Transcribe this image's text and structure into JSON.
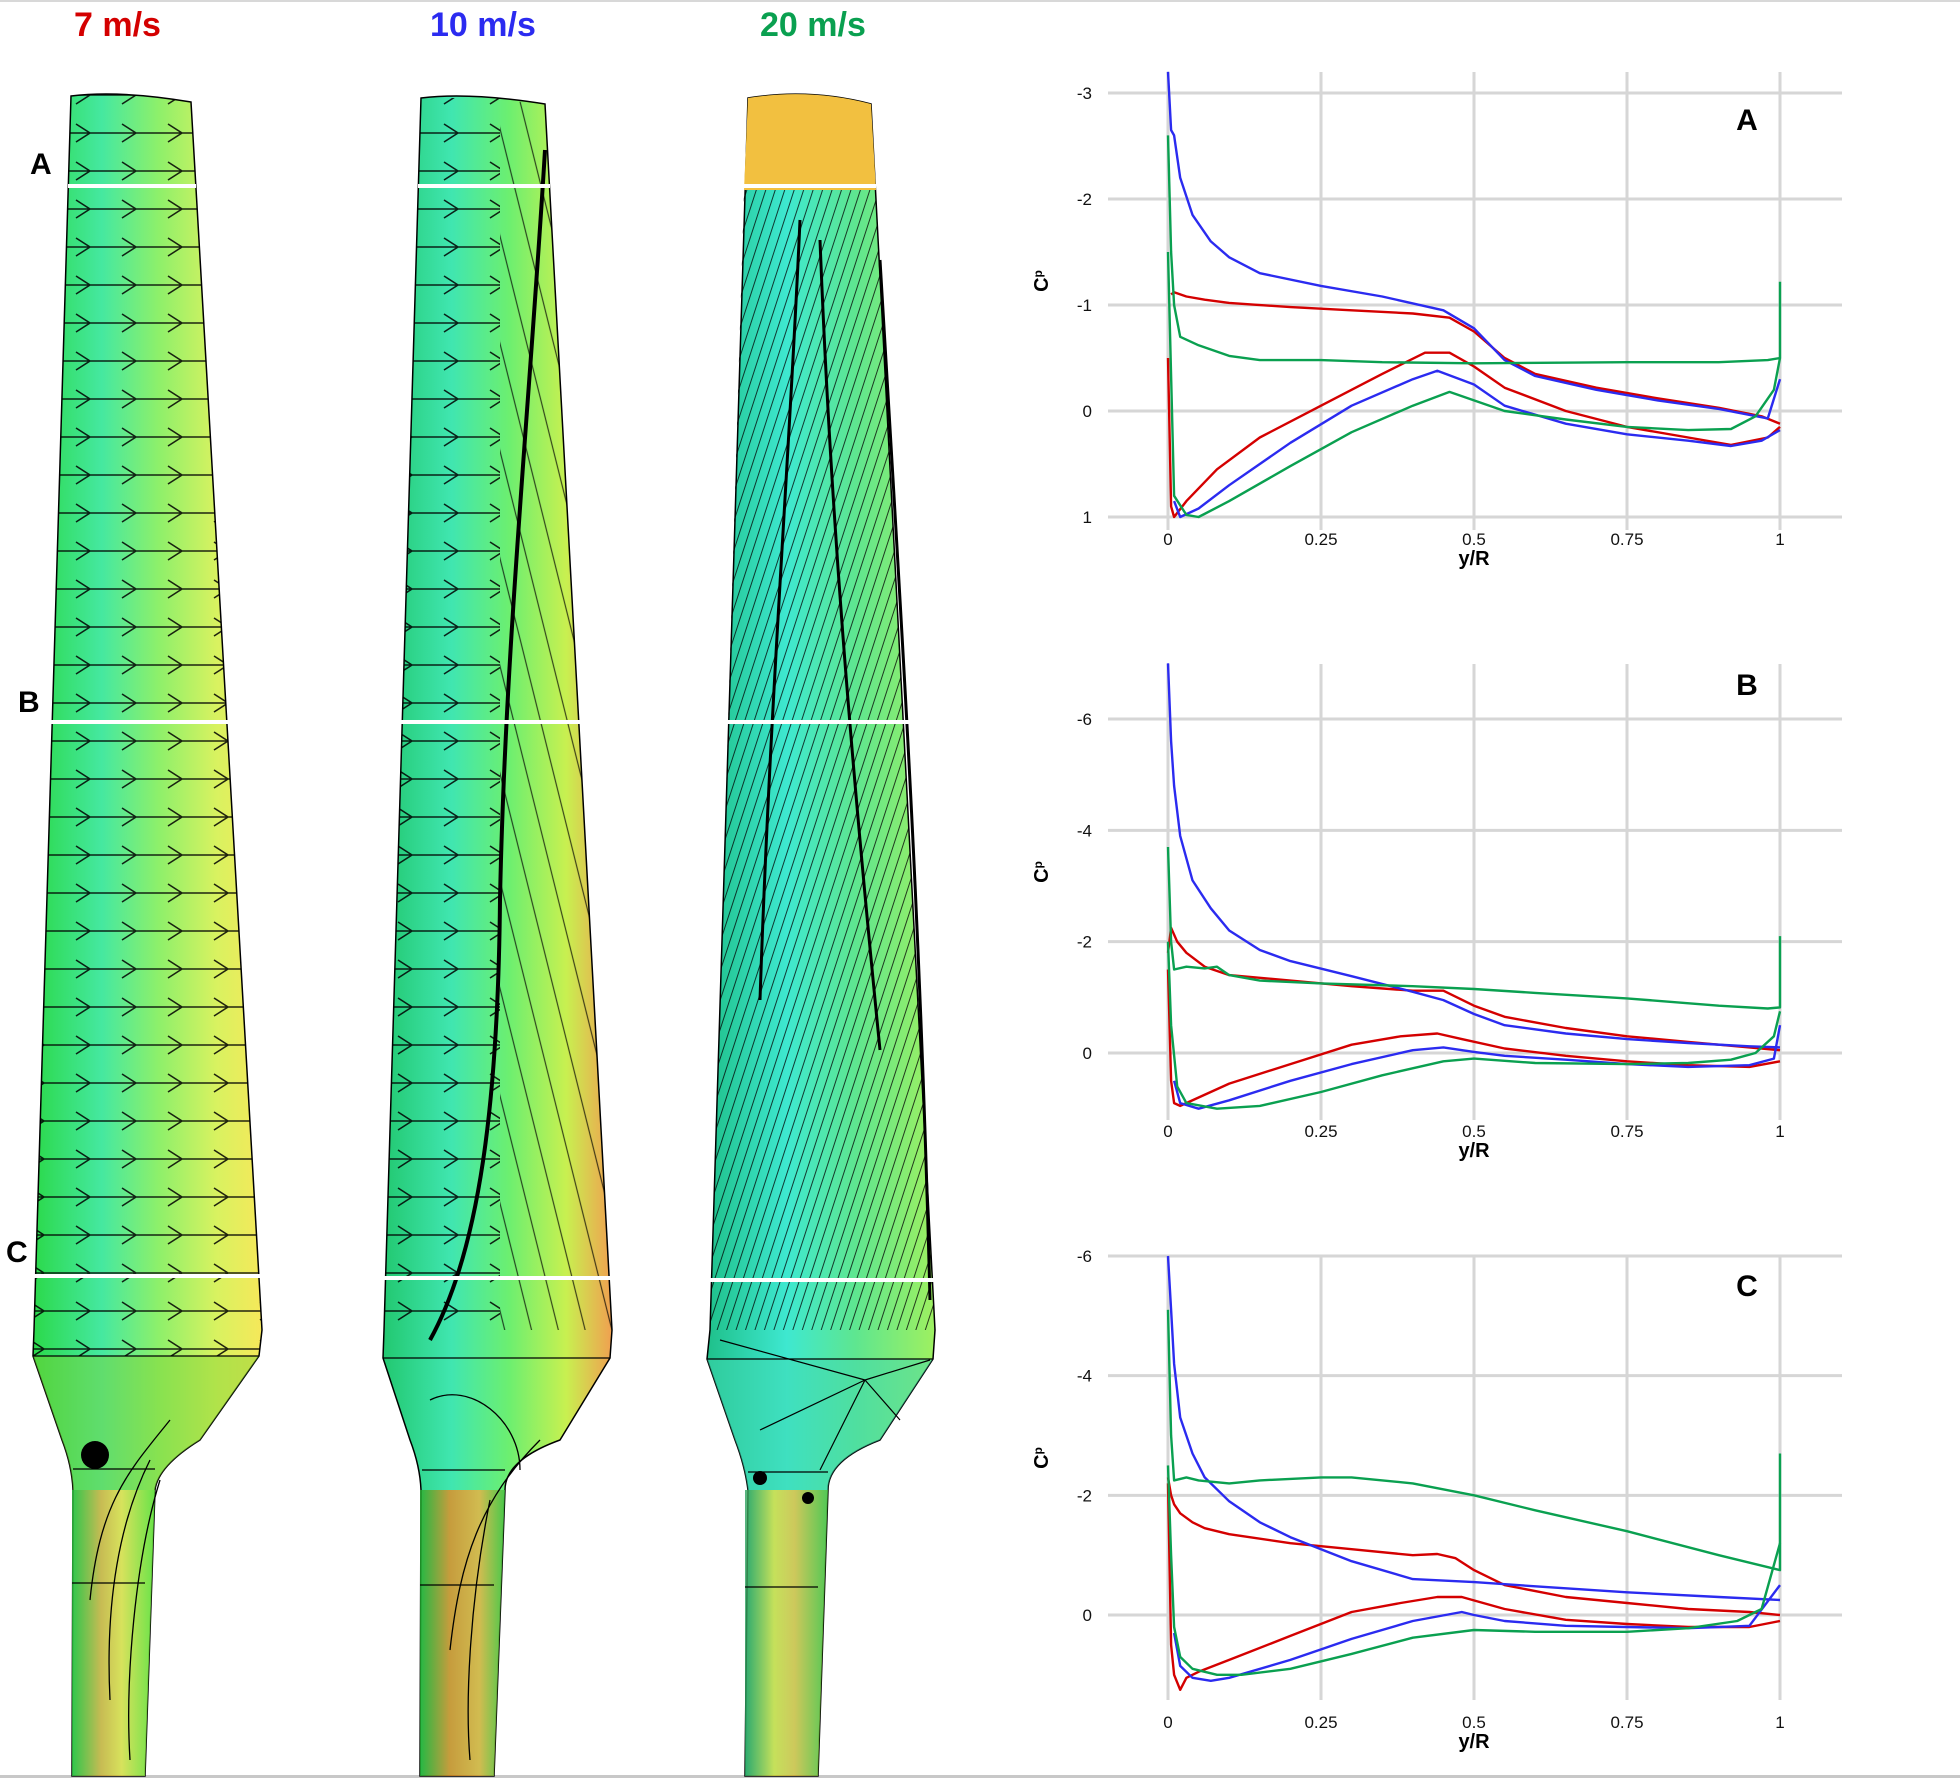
{
  "figure": {
    "speed_labels": [
      {
        "text": "7 m/s",
        "color": "#d40000"
      },
      {
        "text": "10 m/s",
        "color": "#2b2bf0"
      },
      {
        "text": "20 m/s",
        "color": "#0aa050"
      }
    ],
    "section_labels": [
      "A",
      "B",
      "C"
    ]
  },
  "chart_data": [
    {
      "type": "line",
      "title": "A",
      "xlabel": "y/R",
      "ylabel": "Cp",
      "xlim": [
        -0.1,
        1.1
      ],
      "ylim": [
        1,
        -3.2
      ],
      "y_inverted": true,
      "xticks": [
        "0",
        "0.25",
        "0.5",
        "0.75",
        "1"
      ],
      "yticks": [
        "-3",
        "-2",
        "-1",
        "0",
        "1"
      ],
      "grid": true,
      "series": [
        {
          "name": "7 m/s",
          "color": "#d40000",
          "upper": {
            "x": [
              0.005,
              0.01,
              0.03,
              0.06,
              0.1,
              0.2,
              0.3,
              0.4,
              0.46,
              0.5,
              0.55,
              0.6,
              0.7,
              0.8,
              0.9,
              0.97,
              1.0
            ],
            "y": [
              -1.1,
              -1.12,
              -1.08,
              -1.05,
              -1.02,
              -0.98,
              -0.95,
              -0.92,
              -0.88,
              -0.75,
              -0.5,
              -0.35,
              -0.22,
              -0.12,
              -0.03,
              0.05,
              0.12
            ]
          },
          "lower": {
            "x": [
              0.0,
              0.005,
              0.01,
              0.03,
              0.08,
              0.15,
              0.25,
              0.35,
              0.42,
              0.46,
              0.5,
              0.55,
              0.65,
              0.75,
              0.85,
              0.92,
              0.98,
              1.0
            ],
            "y": [
              -0.5,
              0.9,
              1.0,
              0.85,
              0.55,
              0.25,
              -0.05,
              -0.35,
              -0.55,
              -0.55,
              -0.42,
              -0.22,
              0.0,
              0.15,
              0.25,
              0.32,
              0.25,
              0.15
            ]
          }
        },
        {
          "name": "10 m/s",
          "color": "#2b2bf0",
          "upper": {
            "x": [
              0.0,
              0.005,
              0.01,
              0.02,
              0.04,
              0.07,
              0.1,
              0.15,
              0.25,
              0.35,
              0.45,
              0.5,
              0.55,
              0.6,
              0.7,
              0.8,
              0.9,
              0.98,
              1.0
            ],
            "y": [
              -3.2,
              -2.65,
              -2.6,
              -2.2,
              -1.85,
              -1.6,
              -1.45,
              -1.3,
              -1.18,
              -1.08,
              -0.95,
              -0.78,
              -0.48,
              -0.33,
              -0.2,
              -0.1,
              -0.02,
              0.07,
              -0.3
            ]
          },
          "lower": {
            "x": [
              0.01,
              0.02,
              0.05,
              0.1,
              0.2,
              0.3,
              0.4,
              0.44,
              0.5,
              0.55,
              0.65,
              0.75,
              0.85,
              0.92,
              0.97,
              1.0
            ],
            "y": [
              0.85,
              1.0,
              0.92,
              0.7,
              0.3,
              -0.05,
              -0.3,
              -0.38,
              -0.25,
              -0.05,
              0.12,
              0.22,
              0.28,
              0.33,
              0.28,
              0.18
            ]
          }
        },
        {
          "name": "20 m/s",
          "color": "#0aa050",
          "upper": {
            "x": [
              0.0,
              0.005,
              0.01,
              0.02,
              0.05,
              0.1,
              0.15,
              0.25,
              0.35,
              0.5,
              0.75,
              0.9,
              0.98,
              1.0,
              1.0
            ],
            "y": [
              -2.6,
              -1.5,
              -1.0,
              -0.7,
              -0.62,
              -0.52,
              -0.48,
              -0.48,
              -0.46,
              -0.45,
              -0.46,
              -0.46,
              -0.48,
              -0.5,
              -1.22
            ]
          },
          "lower": {
            "x": [
              0.0,
              0.01,
              0.03,
              0.05,
              0.1,
              0.2,
              0.3,
              0.4,
              0.46,
              0.5,
              0.55,
              0.65,
              0.75,
              0.85,
              0.92,
              0.96,
              0.99,
              1.0
            ],
            "y": [
              -1.5,
              0.8,
              0.98,
              1.0,
              0.85,
              0.52,
              0.2,
              -0.05,
              -0.18,
              -0.1,
              0.0,
              0.08,
              0.15,
              0.18,
              0.17,
              0.05,
              -0.2,
              -0.5
            ]
          }
        }
      ]
    },
    {
      "type": "line",
      "title": "B",
      "xlabel": "y/R",
      "ylabel": "Cp",
      "xlim": [
        -0.1,
        1.1
      ],
      "ylim": [
        1.2,
        -7
      ],
      "y_inverted": true,
      "xticks": [
        "0",
        "0.25",
        "0.5",
        "0.75",
        "1"
      ],
      "yticks": [
        "-6",
        "-4",
        "-2",
        "0"
      ],
      "grid": true,
      "series": [
        {
          "name": "7 m/s",
          "color": "#d40000",
          "upper": {
            "x": [
              0.0,
              0.005,
              0.015,
              0.03,
              0.06,
              0.1,
              0.2,
              0.3,
              0.4,
              0.45,
              0.5,
              0.55,
              0.65,
              0.75,
              0.85,
              0.95,
              1.0
            ],
            "y": [
              -1.8,
              -2.25,
              -2.0,
              -1.8,
              -1.55,
              -1.4,
              -1.3,
              -1.2,
              -1.12,
              -1.12,
              -0.85,
              -0.65,
              -0.45,
              -0.3,
              -0.2,
              -0.1,
              -0.05
            ]
          },
          "lower": {
            "x": [
              0.0,
              0.005,
              0.01,
              0.02,
              0.05,
              0.1,
              0.2,
              0.3,
              0.38,
              0.44,
              0.48,
              0.55,
              0.65,
              0.75,
              0.85,
              0.95,
              1.0
            ],
            "y": [
              -1.5,
              0.5,
              0.9,
              0.95,
              0.8,
              0.55,
              0.2,
              -0.15,
              -0.3,
              -0.35,
              -0.25,
              -0.08,
              0.05,
              0.15,
              0.22,
              0.25,
              0.15
            ]
          }
        },
        {
          "name": "10 m/s",
          "color": "#2b2bf0",
          "upper": {
            "x": [
              0.0,
              0.005,
              0.01,
              0.02,
              0.04,
              0.07,
              0.1,
              0.15,
              0.2,
              0.3,
              0.4,
              0.45,
              0.5,
              0.55,
              0.65,
              0.75,
              0.85,
              0.95,
              1.0
            ],
            "y": [
              -7.0,
              -5.6,
              -4.8,
              -3.9,
              -3.1,
              -2.6,
              -2.2,
              -1.85,
              -1.65,
              -1.38,
              -1.1,
              -0.95,
              -0.7,
              -0.5,
              -0.35,
              -0.25,
              -0.18,
              -0.12,
              -0.1
            ]
          },
          "lower": {
            "x": [
              0.01,
              0.02,
              0.05,
              0.1,
              0.2,
              0.3,
              0.4,
              0.45,
              0.5,
              0.55,
              0.65,
              0.75,
              0.85,
              0.95,
              0.99,
              1.0
            ],
            "y": [
              0.5,
              0.9,
              1.0,
              0.85,
              0.5,
              0.2,
              -0.05,
              -0.1,
              -0.02,
              0.05,
              0.12,
              0.2,
              0.25,
              0.22,
              0.1,
              -0.5
            ]
          }
        },
        {
          "name": "20 m/s",
          "color": "#0aa050",
          "upper": {
            "x": [
              0.0,
              0.005,
              0.01,
              0.03,
              0.06,
              0.08,
              0.1,
              0.15,
              0.25,
              0.4,
              0.5,
              0.6,
              0.75,
              0.9,
              0.98,
              1.0,
              1.0
            ],
            "y": [
              -3.7,
              -2.0,
              -1.5,
              -1.55,
              -1.52,
              -1.55,
              -1.4,
              -1.3,
              -1.25,
              -1.2,
              -1.15,
              -1.08,
              -0.98,
              -0.85,
              -0.8,
              -0.82,
              -2.1
            ]
          },
          "lower": {
            "x": [
              0.0,
              0.005,
              0.015,
              0.03,
              0.08,
              0.15,
              0.25,
              0.35,
              0.45,
              0.5,
              0.6,
              0.75,
              0.85,
              0.92,
              0.96,
              0.99,
              1.0
            ],
            "y": [
              -2.0,
              -0.5,
              0.6,
              0.9,
              1.0,
              0.95,
              0.7,
              0.4,
              0.15,
              0.1,
              0.18,
              0.2,
              0.18,
              0.12,
              0.0,
              -0.3,
              -0.75
            ]
          }
        }
      ]
    },
    {
      "type": "line",
      "title": "C",
      "xlabel": "y/R",
      "ylabel": "Cp",
      "xlim": [
        -0.1,
        1.1
      ],
      "ylim": [
        1.5,
        -6
      ],
      "y_inverted": true,
      "xticks": [
        "0",
        "0.25",
        "0.5",
        "0.75",
        "1"
      ],
      "yticks": [
        "-6",
        "-4",
        "-2",
        "0"
      ],
      "grid": true,
      "series": [
        {
          "name": "7 m/s",
          "color": "#d40000",
          "upper": {
            "x": [
              0.0,
              0.005,
              0.01,
              0.02,
              0.04,
              0.06,
              0.1,
              0.2,
              0.3,
              0.4,
              0.44,
              0.47,
              0.5,
              0.55,
              0.65,
              0.75,
              0.85,
              0.95,
              1.0
            ],
            "y": [
              -2.3,
              -2.0,
              -1.85,
              -1.7,
              -1.55,
              -1.45,
              -1.35,
              -1.2,
              -1.1,
              -1.0,
              -1.02,
              -0.95,
              -0.75,
              -0.5,
              -0.3,
              -0.2,
              -0.1,
              -0.05,
              0.0
            ]
          },
          "lower": {
            "x": [
              0.0,
              0.005,
              0.01,
              0.02,
              0.03,
              0.05,
              0.1,
              0.2,
              0.3,
              0.38,
              0.44,
              0.48,
              0.55,
              0.65,
              0.75,
              0.85,
              0.95,
              1.0
            ],
            "y": [
              -2.2,
              0.5,
              1.0,
              1.25,
              1.05,
              0.95,
              0.75,
              0.35,
              -0.05,
              -0.2,
              -0.3,
              -0.3,
              -0.1,
              0.08,
              0.15,
              0.2,
              0.2,
              0.1
            ]
          }
        },
        {
          "name": "10 m/s",
          "color": "#2b2bf0",
          "upper": {
            "x": [
              0.0,
              0.005,
              0.01,
              0.02,
              0.04,
              0.06,
              0.1,
              0.15,
              0.2,
              0.3,
              0.4,
              0.5,
              0.6,
              0.75,
              0.9,
              1.0
            ],
            "y": [
              -6.0,
              -5.1,
              -4.2,
              -3.3,
              -2.7,
              -2.3,
              -1.9,
              -1.55,
              -1.3,
              -0.9,
              -0.6,
              -0.55,
              -0.48,
              -0.38,
              -0.3,
              -0.25
            ]
          },
          "lower": {
            "x": [
              0.01,
              0.02,
              0.04,
              0.07,
              0.1,
              0.2,
              0.3,
              0.4,
              0.48,
              0.5,
              0.55,
              0.65,
              0.75,
              0.85,
              0.95,
              1.0
            ],
            "y": [
              0.3,
              0.85,
              1.05,
              1.1,
              1.05,
              0.75,
              0.4,
              0.1,
              -0.05,
              0.0,
              0.1,
              0.18,
              0.2,
              0.22,
              0.18,
              -0.5
            ]
          }
        },
        {
          "name": "20 m/s",
          "color": "#0aa050",
          "upper": {
            "x": [
              0.0,
              0.005,
              0.01,
              0.03,
              0.05,
              0.1,
              0.15,
              0.25,
              0.3,
              0.4,
              0.5,
              0.6,
              0.75,
              0.9,
              1.0,
              1.0
            ],
            "y": [
              -5.1,
              -3.0,
              -2.25,
              -2.3,
              -2.25,
              -2.2,
              -2.25,
              -2.3,
              -2.3,
              -2.2,
              -2.0,
              -1.75,
              -1.4,
              -1.0,
              -0.75,
              -2.7
            ]
          },
          "lower": {
            "x": [
              0.0,
              0.005,
              0.01,
              0.02,
              0.04,
              0.08,
              0.12,
              0.2,
              0.3,
              0.4,
              0.5,
              0.6,
              0.75,
              0.85,
              0.93,
              0.97,
              1.0
            ],
            "y": [
              -2.5,
              -1.0,
              0.2,
              0.7,
              0.9,
              1.0,
              1.0,
              0.9,
              0.65,
              0.38,
              0.25,
              0.28,
              0.28,
              0.22,
              0.1,
              -0.1,
              -1.2
            ]
          }
        }
      ]
    }
  ]
}
